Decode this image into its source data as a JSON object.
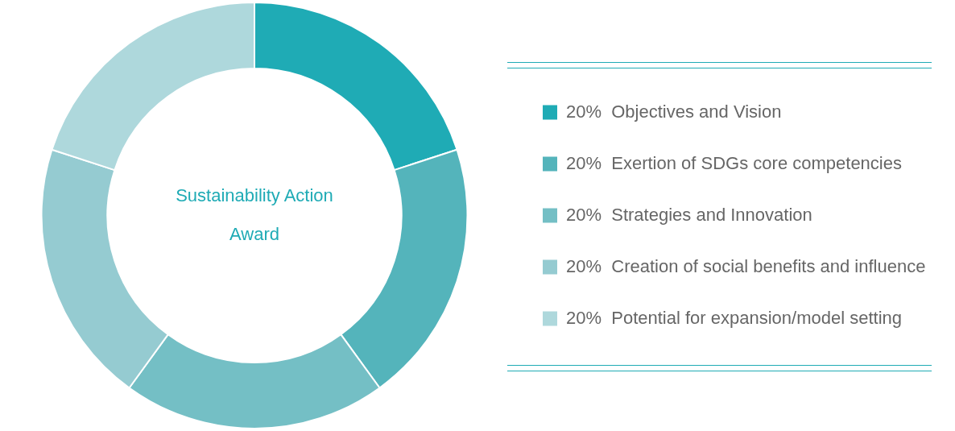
{
  "chart_data": {
    "type": "donut",
    "title": "Sustainability Action Award",
    "categories": [
      "Objectives and Vision",
      "Exertion of SDGs core competencies",
      "Strategies and Innovation",
      "Creation of social benefits and influence",
      "Potential for expansion/model setting"
    ],
    "values": [
      20,
      20,
      20,
      20,
      20
    ],
    "value_labels": [
      "20%",
      "20%",
      "20%",
      "20%",
      "20%"
    ],
    "colors": [
      "#1fabb5",
      "#54b4bb",
      "#74bfc5",
      "#95cbd1",
      "#aed8dc"
    ],
    "legend": "right"
  }
}
